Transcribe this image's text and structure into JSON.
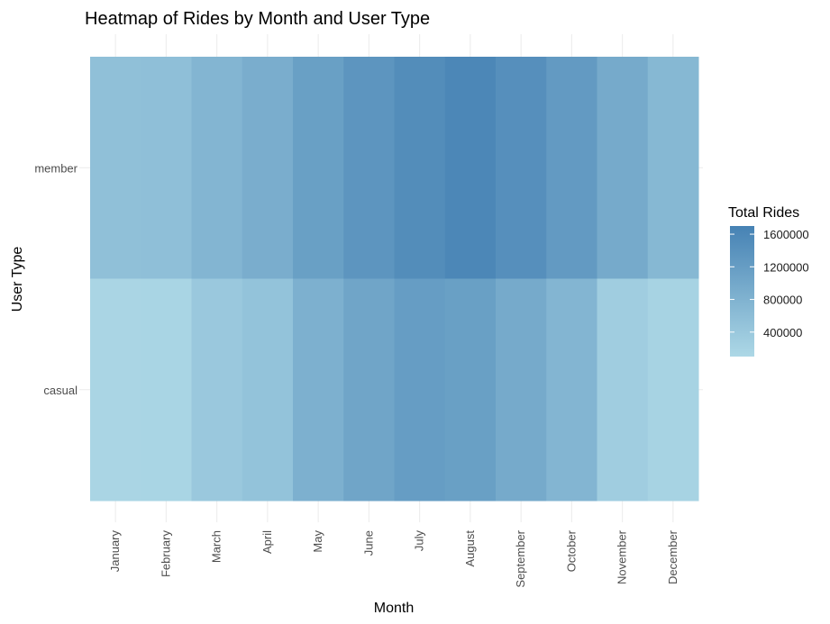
{
  "chart_data": {
    "type": "heatmap",
    "title": "Heatmap of Rides by Month and User Type",
    "xlabel": "Month",
    "ylabel": "User Type",
    "x_categories": [
      "January",
      "February",
      "March",
      "April",
      "May",
      "June",
      "July",
      "August",
      "September",
      "October",
      "November",
      "December"
    ],
    "y_categories": [
      "member",
      "casual"
    ],
    "series": [
      {
        "name": "member",
        "values": [
          550000,
          560000,
          750000,
          900000,
          1150000,
          1350000,
          1500000,
          1600000,
          1450000,
          1250000,
          950000,
          700000
        ]
      },
      {
        "name": "casual",
        "values": [
          150000,
          160000,
          400000,
          500000,
          850000,
          1050000,
          1200000,
          1150000,
          950000,
          750000,
          300000,
          200000
        ]
      }
    ],
    "legend": {
      "title": "Total Rides",
      "placement": "right",
      "min": 100000,
      "max": 1700000,
      "ticks": [
        400000,
        800000,
        1200000,
        1600000
      ],
      "tick_labels": [
        "400000",
        "800000",
        "1200000",
        "1600000"
      ],
      "color_low": "#ADD8E6",
      "color_high": "#4682B4"
    },
    "grid": true
  }
}
